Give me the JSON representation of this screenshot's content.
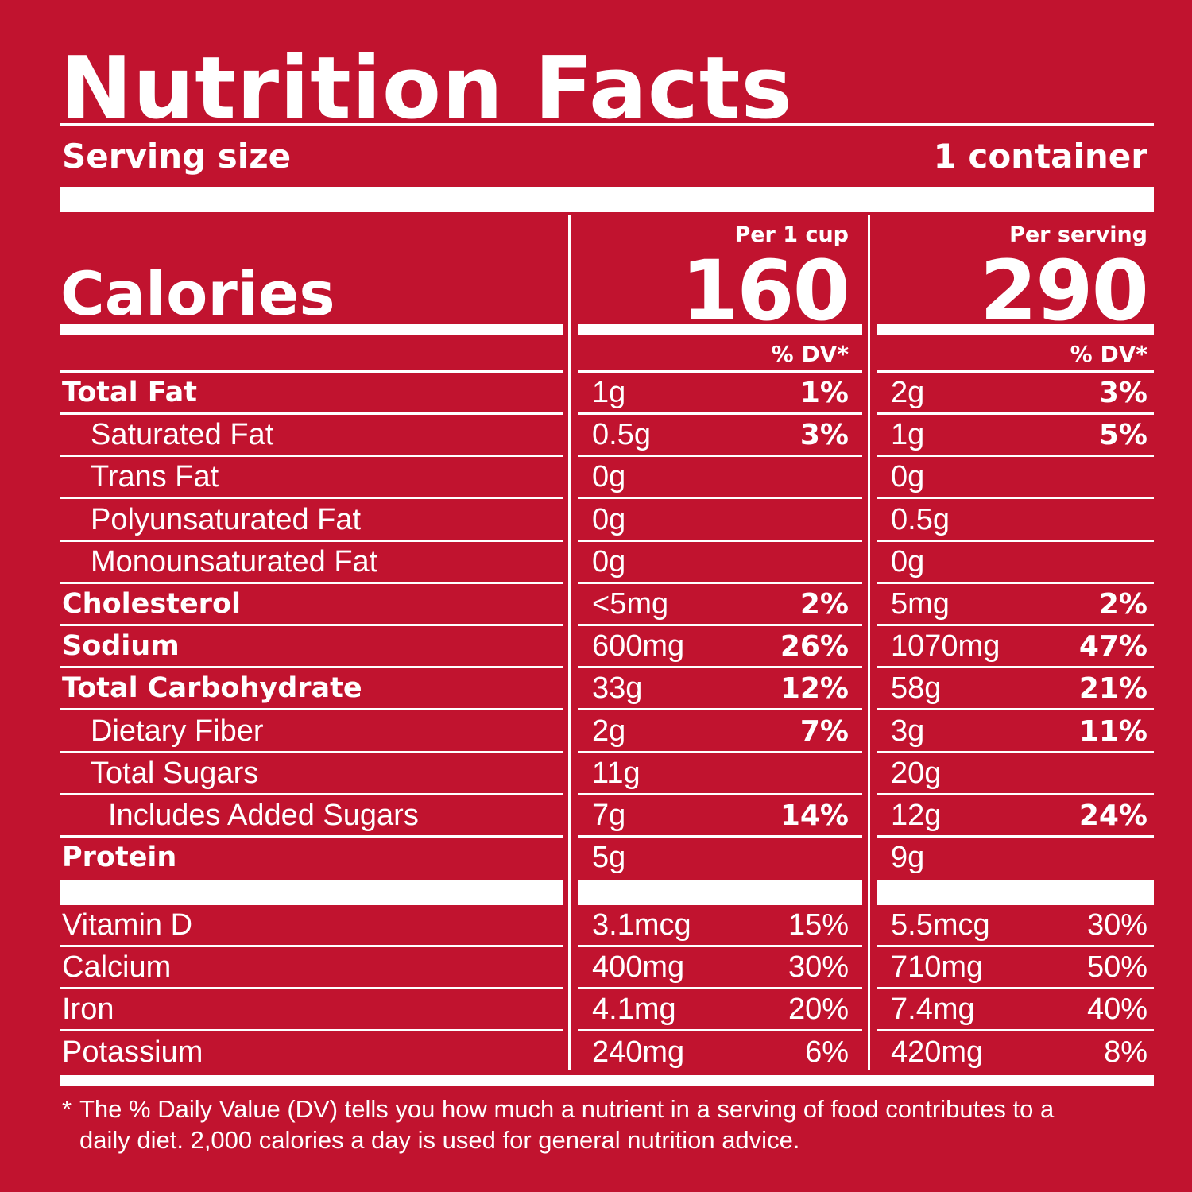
{
  "title": "Nutrition Facts",
  "serving": {
    "label": "Serving size",
    "value": "1 container"
  },
  "calories": {
    "label": "Calories",
    "col1_header": "Per 1 cup",
    "col1_value": "160",
    "col2_header": "Per serving",
    "col2_value": "290"
  },
  "dv_header": "% DV*",
  "nutrients": [
    {
      "name": "Total Fat",
      "style": "bold",
      "a1": "1g",
      "p1": "1%",
      "a2": "2g",
      "p2": "3%"
    },
    {
      "name": "Saturated Fat",
      "style": "ind1",
      "a1": "0.5g",
      "p1": "3%",
      "a2": "1g",
      "p2": "5%"
    },
    {
      "name": "Trans Fat",
      "style": "ind1",
      "a1": "0g",
      "p1": "",
      "a2": "0g",
      "p2": ""
    },
    {
      "name": "Polyunsaturated Fat",
      "style": "ind1",
      "a1": "0g",
      "p1": "",
      "a2": "0.5g",
      "p2": ""
    },
    {
      "name": "Monounsaturated Fat",
      "style": "ind1",
      "a1": "0g",
      "p1": "",
      "a2": "0g",
      "p2": ""
    },
    {
      "name": "Cholesterol",
      "style": "bold",
      "a1": "<5mg",
      "p1": "2%",
      "a2": "5mg",
      "p2": "2%"
    },
    {
      "name": "Sodium",
      "style": "bold",
      "a1": "600mg",
      "p1": "26%",
      "a2": "1070mg",
      "p2": "47%"
    },
    {
      "name": "Total Carbohydrate",
      "style": "bold",
      "a1": "33g",
      "p1": "12%",
      "a2": "58g",
      "p2": "21%"
    },
    {
      "name": "Dietary Fiber",
      "style": "ind1",
      "a1": "2g",
      "p1": "7%",
      "a2": "3g",
      "p2": "11%"
    },
    {
      "name": "Total Sugars",
      "style": "ind1",
      "a1": "11g",
      "p1": "",
      "a2": "20g",
      "p2": ""
    },
    {
      "name": "Includes Added Sugars",
      "style": "ind2",
      "a1": "7g",
      "p1": "14%",
      "a2": "12g",
      "p2": "24%"
    },
    {
      "name": "Protein",
      "style": "bold",
      "a1": "5g",
      "p1": "",
      "a2": "9g",
      "p2": ""
    }
  ],
  "vitamins": [
    {
      "name": "Vitamin D",
      "a1": "3.1mcg",
      "p1": "15%",
      "a2": "5.5mcg",
      "p2": "30%"
    },
    {
      "name": "Calcium",
      "a1": "400mg",
      "p1": "30%",
      "a2": "710mg",
      "p2": "50%"
    },
    {
      "name": "Iron",
      "a1": "4.1mg",
      "p1": "20%",
      "a2": "7.4mg",
      "p2": "40%"
    },
    {
      "name": "Potassium",
      "a1": "240mg",
      "p1": "6%",
      "a2": "420mg",
      "p2": "8%"
    }
  ],
  "footnote": {
    "star": "*",
    "line1": "The % Daily Value (DV) tells you how much a nutrient in a serving of food contributes to a",
    "line2": "daily diet. 2,000 calories a day is used for general nutrition advice."
  },
  "colors": {
    "background": "#c1132f",
    "foreground": "#ffffff"
  }
}
